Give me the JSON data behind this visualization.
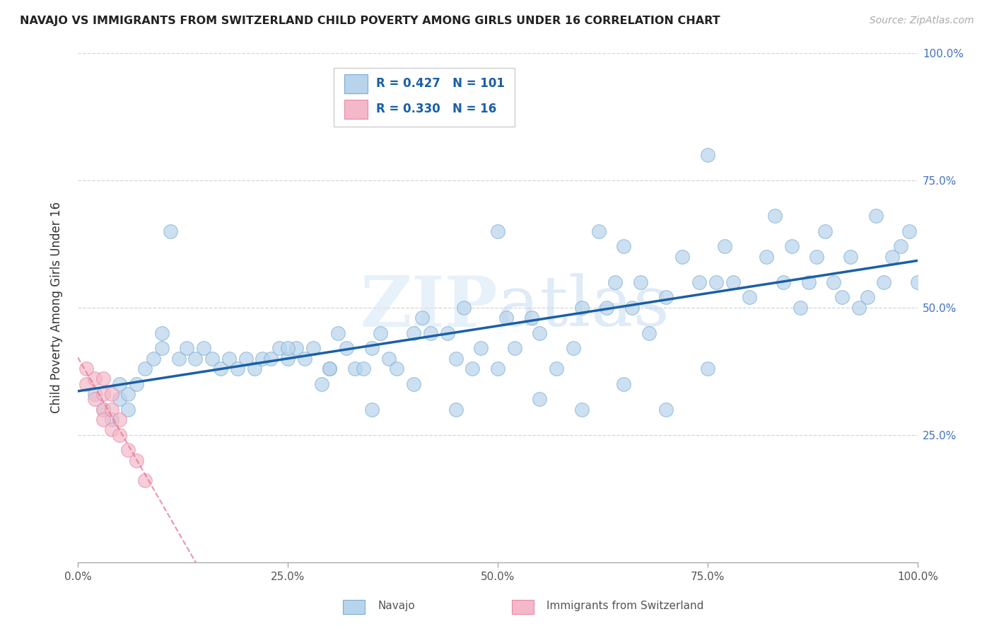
{
  "title": "NAVAJO VS IMMIGRANTS FROM SWITZERLAND CHILD POVERTY AMONG GIRLS UNDER 16 CORRELATION CHART",
  "source": "Source: ZipAtlas.com",
  "ylabel": "Child Poverty Among Girls Under 16",
  "watermark": "ZIPatlas",
  "navajo_R": 0.427,
  "navajo_N": 101,
  "swiss_R": 0.33,
  "swiss_N": 16,
  "navajo_color": "#b8d4ec",
  "swiss_color": "#f4b8c8",
  "navajo_edge_color": "#7aadd4",
  "swiss_edge_color": "#e888a8",
  "trend_navajo_color": "#1a5fa8",
  "trend_swiss_color": "#e87090",
  "navajo_x": [
    0.02,
    0.03,
    0.04,
    0.05,
    0.05,
    0.06,
    0.06,
    0.07,
    0.08,
    0.09,
    0.1,
    0.1,
    0.11,
    0.12,
    0.13,
    0.14,
    0.15,
    0.16,
    0.17,
    0.18,
    0.19,
    0.2,
    0.21,
    0.22,
    0.23,
    0.24,
    0.25,
    0.26,
    0.27,
    0.28,
    0.29,
    0.3,
    0.31,
    0.32,
    0.33,
    0.34,
    0.35,
    0.36,
    0.37,
    0.38,
    0.4,
    0.41,
    0.42,
    0.44,
    0.45,
    0.46,
    0.47,
    0.48,
    0.5,
    0.51,
    0.52,
    0.54,
    0.55,
    0.57,
    0.59,
    0.6,
    0.62,
    0.63,
    0.64,
    0.65,
    0.66,
    0.67,
    0.68,
    0.7,
    0.72,
    0.74,
    0.75,
    0.76,
    0.77,
    0.78,
    0.8,
    0.82,
    0.83,
    0.84,
    0.85,
    0.86,
    0.87,
    0.88,
    0.89,
    0.9,
    0.91,
    0.92,
    0.93,
    0.94,
    0.95,
    0.96,
    0.97,
    0.98,
    0.99,
    1.0,
    0.25,
    0.3,
    0.35,
    0.4,
    0.45,
    0.5,
    0.55,
    0.6,
    0.65,
    0.7,
    0.75
  ],
  "navajo_y": [
    0.33,
    0.3,
    0.28,
    0.35,
    0.32,
    0.3,
    0.33,
    0.35,
    0.38,
    0.4,
    0.42,
    0.45,
    0.65,
    0.4,
    0.42,
    0.4,
    0.42,
    0.4,
    0.38,
    0.4,
    0.38,
    0.4,
    0.38,
    0.4,
    0.4,
    0.42,
    0.4,
    0.42,
    0.4,
    0.42,
    0.35,
    0.38,
    0.45,
    0.42,
    0.38,
    0.38,
    0.42,
    0.45,
    0.4,
    0.38,
    0.45,
    0.48,
    0.45,
    0.45,
    0.4,
    0.5,
    0.38,
    0.42,
    0.65,
    0.48,
    0.42,
    0.48,
    0.45,
    0.38,
    0.42,
    0.5,
    0.65,
    0.5,
    0.55,
    0.62,
    0.5,
    0.55,
    0.45,
    0.52,
    0.6,
    0.55,
    0.8,
    0.55,
    0.62,
    0.55,
    0.52,
    0.6,
    0.68,
    0.55,
    0.62,
    0.5,
    0.55,
    0.6,
    0.65,
    0.55,
    0.52,
    0.6,
    0.5,
    0.52,
    0.68,
    0.55,
    0.6,
    0.62,
    0.65,
    0.55,
    0.42,
    0.38,
    0.3,
    0.35,
    0.3,
    0.38,
    0.32,
    0.3,
    0.35,
    0.3,
    0.38
  ],
  "swiss_x": [
    0.01,
    0.01,
    0.02,
    0.02,
    0.03,
    0.03,
    0.03,
    0.03,
    0.04,
    0.04,
    0.04,
    0.05,
    0.05,
    0.06,
    0.07,
    0.08
  ],
  "swiss_y": [
    0.35,
    0.38,
    0.32,
    0.36,
    0.3,
    0.33,
    0.36,
    0.28,
    0.26,
    0.3,
    0.33,
    0.25,
    0.28,
    0.22,
    0.2,
    0.16
  ],
  "xlim": [
    0.0,
    1.0
  ],
  "ylim": [
    0.0,
    1.0
  ],
  "xticks": [
    0.0,
    0.25,
    0.5,
    0.75,
    1.0
  ],
  "yticks": [
    0.25,
    0.5,
    0.75,
    1.0
  ],
  "xticklabels": [
    "0.0%",
    "25.0%",
    "50.0%",
    "75.0%",
    "100.0%"
  ],
  "yticklabels": [
    "25.0%",
    "50.0%",
    "75.0%",
    "100.0%"
  ],
  "background_color": "#ffffff",
  "grid_color": "#cccccc",
  "tick_color": "#4472c4",
  "ytick_right_color": "#4472c4"
}
